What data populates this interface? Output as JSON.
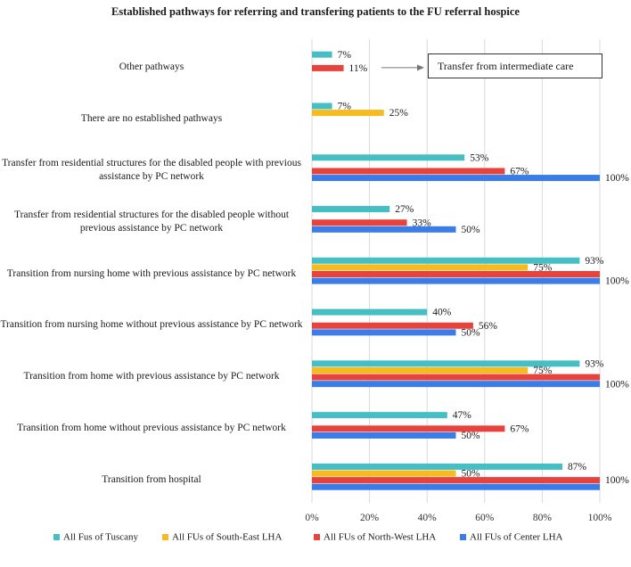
{
  "chart_data": {
    "type": "bar",
    "orientation": "horizontal",
    "title": "Established pathways for referring and transfering patients to the FU referral hospice",
    "categories": [
      "Other pathways",
      "There are no established pathways",
      "Transfer from residential structures for the disabled people with previous assistance by PC network",
      "Transfer from residential structures for the disabled people without previous assistance by PC network",
      "Transition from nursing home with previous assistance by PC network",
      "Transition from nursing home without previous assistance by PC network",
      "Transition from home with previous assistance by PC network",
      "Transition from home without previous assistance by PC network",
      "Transition from hospital"
    ],
    "series": [
      {
        "name": "All Fus of Tuscany",
        "color": "#45bfc4",
        "values": [
          7,
          7,
          53,
          27,
          93,
          40,
          93,
          47,
          87
        ],
        "labels": [
          "7%",
          "7%",
          "53%",
          "27%",
          "93%",
          "40%",
          "93%",
          "47%",
          "87%"
        ]
      },
      {
        "name": "All FUs of South-East LHA",
        "color": "#f6bb1e",
        "values": [
          null,
          25,
          null,
          null,
          75,
          null,
          75,
          null,
          50
        ],
        "labels": [
          "",
          "25%",
          "",
          "",
          "75%",
          "",
          "75%",
          "",
          "50%"
        ]
      },
      {
        "name": "All FUs of North-West LHA",
        "color": "#e8423c",
        "values": [
          11,
          null,
          67,
          33,
          100,
          56,
          100,
          67,
          100
        ],
        "labels": [
          "11%",
          "",
          "67%",
          "33%",
          "",
          "56%",
          "",
          "67%",
          "100%"
        ]
      },
      {
        "name": "All FUs of Center LHA",
        "color": "#3b7de8",
        "values": [
          null,
          null,
          100,
          50,
          100,
          50,
          100,
          50,
          100
        ],
        "labels": [
          "",
          "",
          "100%",
          "50%",
          "100%",
          "50%",
          "100%",
          "50%",
          ""
        ]
      }
    ],
    "xlim": [
      0,
      100
    ],
    "xticks": [
      "0%",
      "20%",
      "40%",
      "60%",
      "80%",
      "100%"
    ],
    "xlabel": "",
    "ylabel": "",
    "grid": true,
    "legend_position": "bottom",
    "annotation": {
      "text": "Transfer from intermediate care",
      "arrow_from": "Other pathways"
    }
  }
}
